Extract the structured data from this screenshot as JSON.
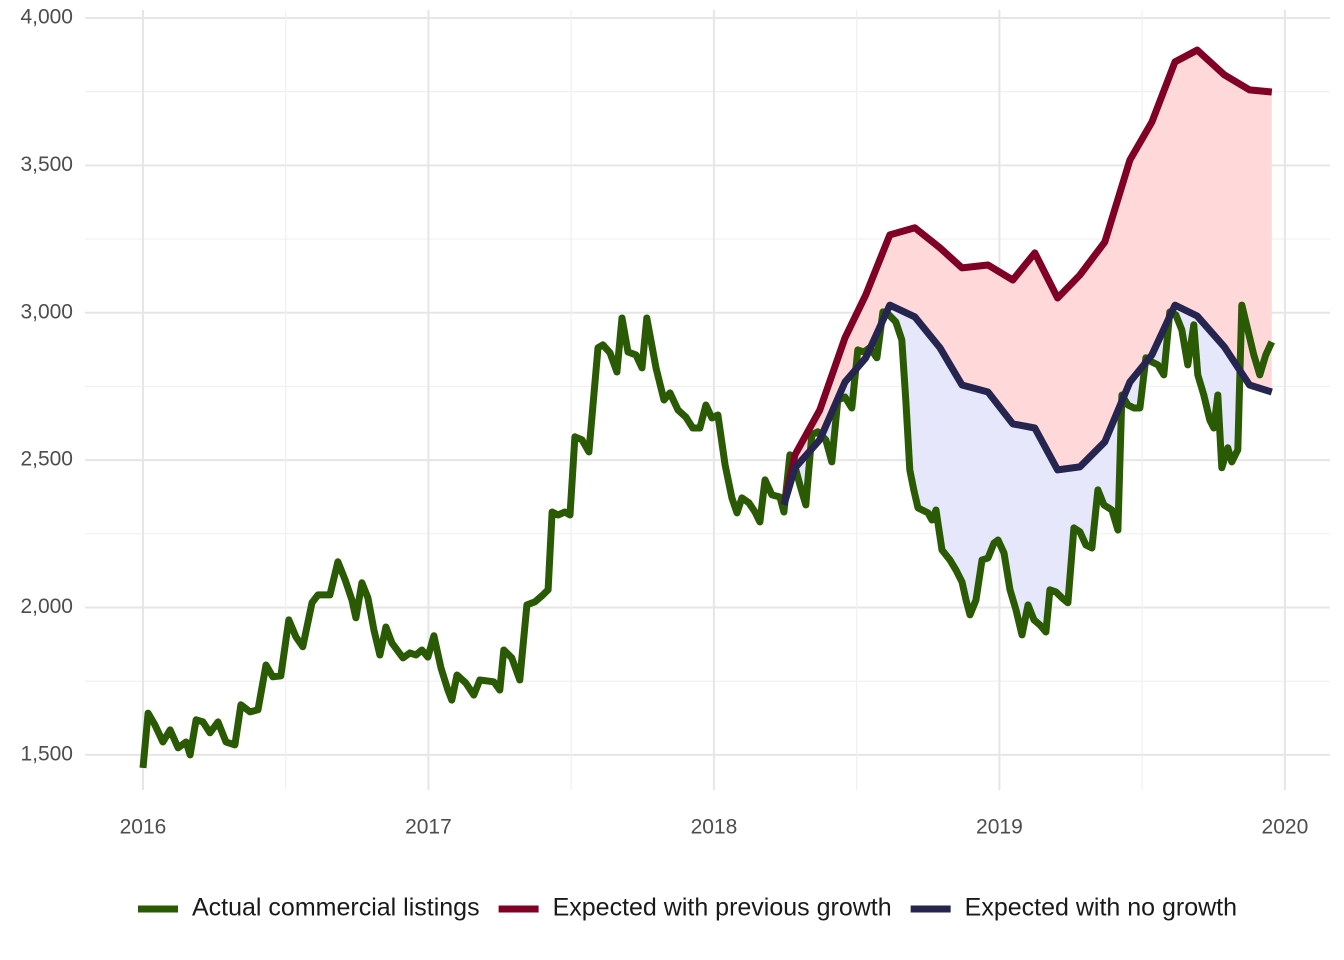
{
  "chart_data": {
    "type": "line",
    "xlim": [
      2015.797,
      2020.158
    ],
    "ylim": [
      1381,
      4027
    ],
    "xticks": [
      2016,
      2017,
      2018,
      2019,
      2020
    ],
    "yticks": [
      {
        "value": 1500,
        "label": "1,500"
      },
      {
        "value": 2000,
        "label": "2,000"
      },
      {
        "value": 2500,
        "label": "2,500"
      },
      {
        "value": 3000,
        "label": "3,000"
      },
      {
        "value": 3500,
        "label": "3,500"
      },
      {
        "value": 4000,
        "label": "4,000"
      }
    ],
    "grid": true,
    "legend": "bottom",
    "series": [
      {
        "name": "Actual commercial listings",
        "color": "#2b5a05",
        "x": [
          2016.0,
          2016.018,
          2016.042,
          2016.07,
          2016.095,
          2016.123,
          2016.151,
          2016.165,
          2016.186,
          2016.21,
          2016.235,
          2016.263,
          2016.291,
          2016.322,
          2016.343,
          2016.375,
          2016.403,
          2016.431,
          2016.455,
          2016.483,
          2016.511,
          2016.536,
          2016.56,
          2016.592,
          2016.613,
          2016.655,
          2016.683,
          2016.708,
          2016.732,
          2016.746,
          2016.767,
          2016.788,
          2016.809,
          2016.83,
          2016.851,
          2016.872,
          2016.911,
          2016.935,
          2016.956,
          2016.977,
          2016.998,
          2017.019,
          2017.044,
          2017.068,
          2017.082,
          2017.1,
          2017.131,
          2017.159,
          2017.18,
          2017.229,
          2017.25,
          2017.264,
          2017.292,
          2017.32,
          2017.345,
          2017.373,
          2017.398,
          2017.419,
          2017.433,
          2017.454,
          2017.478,
          2017.496,
          2017.513,
          2017.538,
          2017.562,
          2017.594,
          2017.611,
          2017.636,
          2017.66,
          2017.678,
          2017.699,
          2017.727,
          2017.748,
          2017.765,
          2017.797,
          2017.825,
          2017.846,
          2017.874,
          2017.902,
          2017.926,
          2017.951,
          2017.972,
          2017.993,
          2018.014,
          2018.039,
          2018.063,
          2018.081,
          2018.098,
          2018.123,
          2018.144,
          2018.161,
          2018.179,
          2018.203,
          2018.231,
          2018.245,
          2018.266,
          2018.287,
          2018.301,
          2018.322,
          2018.343,
          2018.364,
          2018.392,
          2018.413,
          2018.434,
          2018.459,
          2018.483,
          2018.504,
          2018.525,
          2018.546,
          2018.571,
          2018.592,
          2018.613,
          2018.637,
          2018.658,
          2018.672,
          2018.686,
          2018.7,
          2018.715,
          2018.75,
          2018.764,
          2018.778,
          2018.799,
          2018.827,
          2018.848,
          2018.869,
          2018.883,
          2018.897,
          2018.918,
          2018.939,
          2018.96,
          2018.981,
          2018.995,
          2019.016,
          2019.037,
          2019.058,
          2019.079,
          2019.1,
          2019.121,
          2019.142,
          2019.163,
          2019.177,
          2019.198,
          2019.219,
          2019.24,
          2019.261,
          2019.282,
          2019.303,
          2019.324,
          2019.345,
          2019.366,
          2019.394,
          2019.415,
          2019.429,
          2019.45,
          2019.471,
          2019.492,
          2019.513,
          2019.534,
          2019.555,
          2019.576,
          2019.597,
          2019.618,
          2019.639,
          2019.66,
          2019.681,
          2019.695,
          2019.716,
          2019.737,
          2019.751,
          2019.765,
          2019.779,
          2019.8,
          2019.814,
          2019.835,
          2019.849,
          2019.87,
          2019.891,
          2019.912,
          2019.933,
          2019.954
        ],
        "values": [
          1456,
          1642,
          1602,
          1544,
          1585,
          1524,
          1544,
          1500,
          1619,
          1612,
          1575,
          1612,
          1544,
          1534,
          1670,
          1646,
          1653,
          1805,
          1765,
          1768,
          1958,
          1900,
          1867,
          2016,
          2043,
          2043,
          2155,
          2094,
          2026,
          1965,
          2084,
          2033,
          1924,
          1839,
          1934,
          1880,
          1829,
          1846,
          1839,
          1856,
          1832,
          1904,
          1795,
          1720,
          1686,
          1771,
          1744,
          1703,
          1754,
          1748,
          1720,
          1856,
          1829,
          1754,
          2009,
          2019,
          2040,
          2060,
          2324,
          2314,
          2324,
          2314,
          2579,
          2569,
          2528,
          2881,
          2891,
          2864,
          2799,
          2982,
          2867,
          2857,
          2813,
          2982,
          2813,
          2704,
          2728,
          2670,
          2646,
          2609,
          2609,
          2687,
          2643,
          2653,
          2484,
          2372,
          2321,
          2372,
          2355,
          2324,
          2290,
          2433,
          2382,
          2375,
          2324,
          2518,
          2467,
          2416,
          2348,
          2586,
          2596,
          2569,
          2494,
          2704,
          2714,
          2677,
          2874,
          2867,
          2881,
          2847,
          3003,
          2993,
          2969,
          2908,
          2704,
          2467,
          2399,
          2338,
          2321,
          2297,
          2331,
          2195,
          2161,
          2127,
          2087,
          2026,
          1975,
          2026,
          2161,
          2168,
          2219,
          2229,
          2185,
          2060,
          1992,
          1907,
          2009,
          1958,
          1941,
          1917,
          2060,
          2053,
          2033,
          2016,
          2270,
          2257,
          2212,
          2202,
          2399,
          2348,
          2331,
          2263,
          2721,
          2687,
          2677,
          2677,
          2847,
          2833,
          2823,
          2789,
          3003,
          2993,
          2942,
          2823,
          2959,
          2789,
          2721,
          2636,
          2609,
          2721,
          2474,
          2542,
          2494,
          2535,
          3026,
          2942,
          2857,
          2789,
          2857,
          2901
        ]
      },
      {
        "name": "Expected with previous growth",
        "color": "#800026",
        "fill": "#ffd9da",
        "x": [
          2018.245,
          2018.284,
          2018.371,
          2018.459,
          2018.532,
          2018.616,
          2018.704,
          2018.792,
          2018.869,
          2018.96,
          2019.047,
          2019.124,
          2019.204,
          2019.282,
          2019.369,
          2019.457,
          2019.534,
          2019.615,
          2019.693,
          2019.788,
          2019.876,
          2019.954
        ],
        "values": [
          2348,
          2518,
          2670,
          2915,
          3061,
          3264,
          3288,
          3220,
          3152,
          3162,
          3111,
          3203,
          3050,
          3128,
          3240,
          3518,
          3647,
          3851,
          3891,
          3807,
          3756,
          3749
        ]
      },
      {
        "name": "Expected with no growth",
        "color": "#25254f",
        "fill": "#e7e7fb",
        "x": [
          2018.245,
          2018.284,
          2018.371,
          2018.459,
          2018.532,
          2018.616,
          2018.704,
          2018.792,
          2018.869,
          2018.96,
          2019.047,
          2019.124,
          2019.204,
          2019.282,
          2019.369,
          2019.457,
          2019.534,
          2019.615,
          2019.693,
          2019.788,
          2019.876,
          2019.954
        ],
        "values": [
          2348,
          2474,
          2569,
          2765,
          2847,
          3026,
          2986,
          2881,
          2755,
          2731,
          2623,
          2609,
          2467,
          2477,
          2562,
          2765,
          2857,
          3026,
          2989,
          2884,
          2755,
          2731
        ]
      }
    ]
  }
}
